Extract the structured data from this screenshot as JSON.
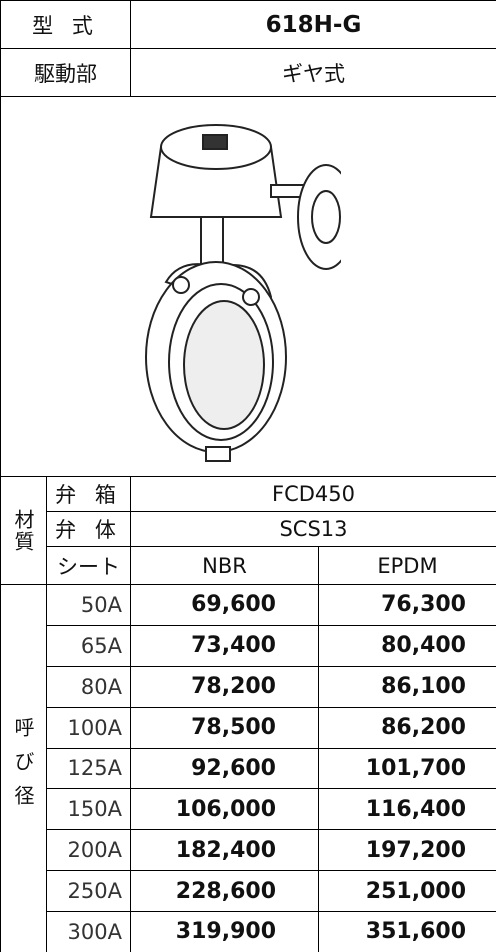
{
  "header": {
    "model_label": "型 式",
    "model": "618H-G",
    "drive_label": "駆動部",
    "drive": "ギヤ式"
  },
  "material": {
    "label": "材質",
    "rows": [
      {
        "name": "弁 箱",
        "value": "FCD450"
      },
      {
        "name": "弁 体",
        "value": "SCS13"
      }
    ],
    "seat_label": "シート",
    "seats": [
      "NBR",
      "EPDM"
    ]
  },
  "prices": {
    "label": "呼び径",
    "rows": [
      [
        "50A",
        "69,600",
        "76,300"
      ],
      [
        "65A",
        "73,400",
        "80,400"
      ],
      [
        "80A",
        "78,200",
        "86,100"
      ],
      [
        "100A",
        "78,500",
        "86,200"
      ],
      [
        "125A",
        "92,600",
        "101,700"
      ],
      [
        "150A",
        "106,000",
        "116,400"
      ],
      [
        "200A",
        "182,400",
        "197,200"
      ],
      [
        "250A",
        "228,600",
        "251,000"
      ],
      [
        "300A",
        "319,900",
        "351,600"
      ]
    ]
  }
}
